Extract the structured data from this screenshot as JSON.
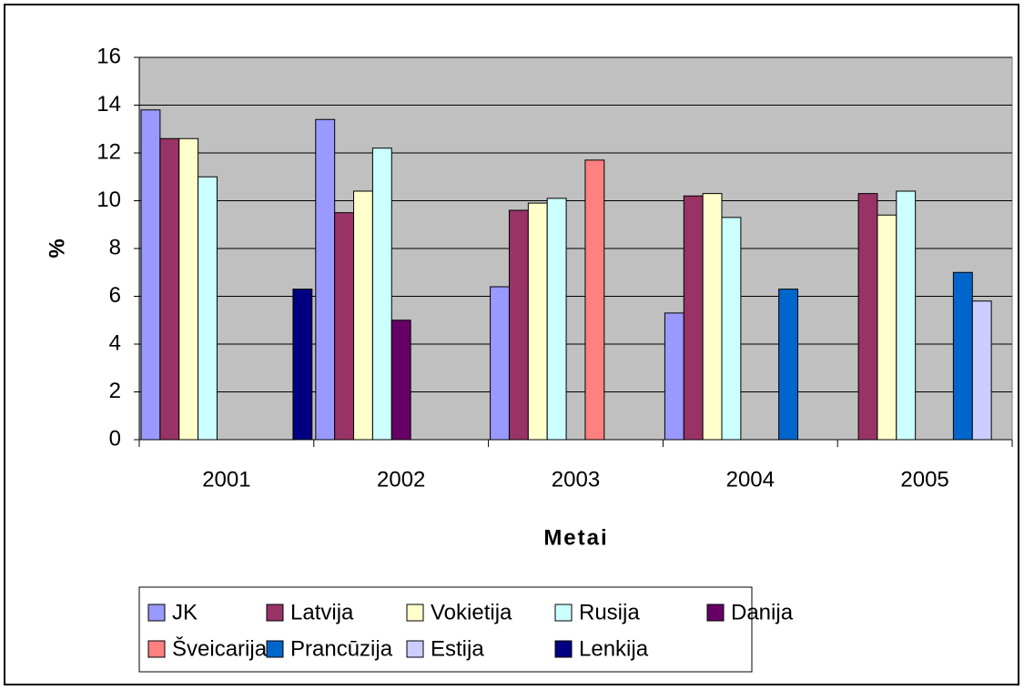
{
  "chart_data": {
    "type": "bar",
    "y_label": "%",
    "x_label": "Metai",
    "categories": [
      "2001",
      "2002",
      "2003",
      "2004",
      "2005"
    ],
    "series": [
      {
        "name": "JK",
        "color": "#9999ff",
        "values": [
          13.8,
          13.4,
          6.4,
          5.3,
          null
        ]
      },
      {
        "name": "Latvija",
        "color": "#993366",
        "values": [
          12.6,
          9.5,
          9.6,
          10.2,
          10.3
        ]
      },
      {
        "name": "Vokietija",
        "color": "#ffffcc",
        "values": [
          12.6,
          10.4,
          9.9,
          10.3,
          9.4
        ]
      },
      {
        "name": "Rusija",
        "color": "#ccffff",
        "values": [
          11.0,
          12.2,
          10.1,
          9.3,
          10.4
        ]
      },
      {
        "name": "Danija",
        "color": "#660066",
        "values": [
          null,
          5.0,
          null,
          null,
          null
        ]
      },
      {
        "name": "Šveicarija",
        "color": "#ff8080",
        "values": [
          null,
          null,
          11.7,
          null,
          null
        ]
      },
      {
        "name": "Prancūzija",
        "color": "#0066cc",
        "values": [
          null,
          null,
          null,
          6.3,
          7.0
        ]
      },
      {
        "name": "Estija",
        "color": "#ccccff",
        "values": [
          null,
          null,
          null,
          null,
          5.8
        ]
      },
      {
        "name": "Lenkija",
        "color": "#000080",
        "values": [
          6.3,
          null,
          null,
          null,
          null
        ]
      }
    ],
    "ylim": [
      0,
      16
    ],
    "yticks": [
      0,
      2,
      4,
      6,
      8,
      10,
      12,
      14,
      16
    ],
    "grid": true,
    "plot_background": "#c0c0c0",
    "legend": "bottom"
  }
}
